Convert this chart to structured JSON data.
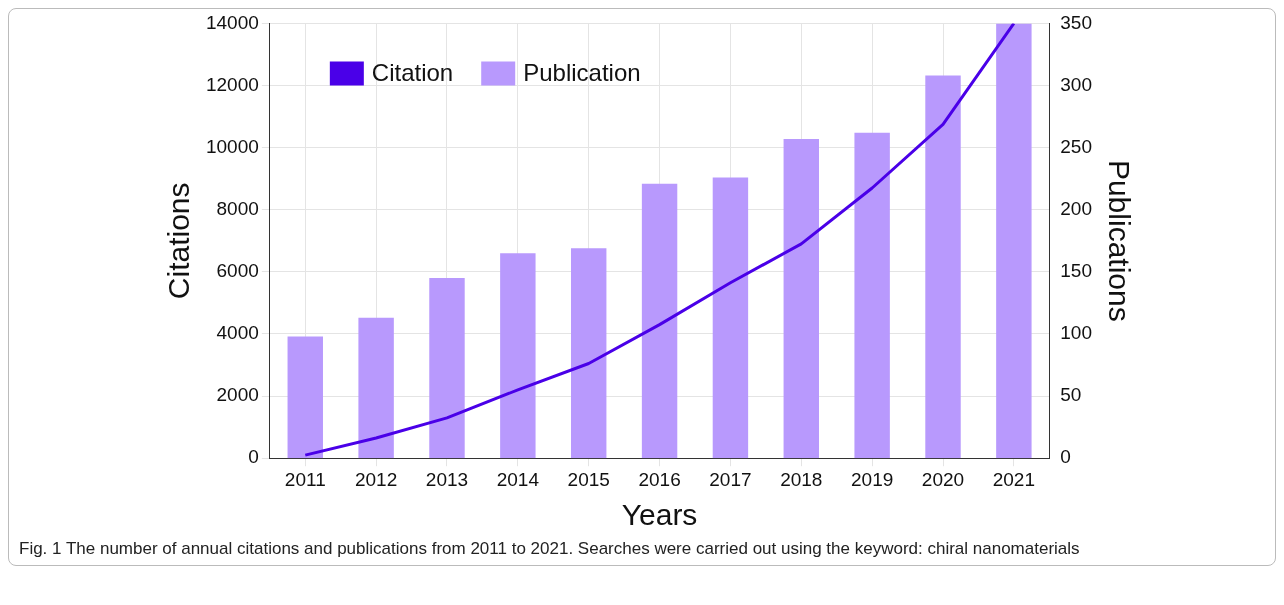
{
  "chart_data": {
    "type": "bar",
    "xlabel": "Years",
    "ylabel": "Citations",
    "y2label": "Publications",
    "categories": [
      "2011",
      "2012",
      "2013",
      "2014",
      "2015",
      "2016",
      "2017",
      "2018",
      "2019",
      "2020",
      "2021"
    ],
    "series": [
      {
        "name": "Citation",
        "type": "line",
        "axis": "y",
        "color": "#4a00e8",
        "values": [
          100,
          650,
          1300,
          2200,
          3050,
          4300,
          5650,
          6900,
          8700,
          10750,
          14000
        ]
      },
      {
        "name": "Publication",
        "axis": "y2",
        "color": "#b899fd",
        "values": [
          98,
          113,
          145,
          165,
          169,
          221,
          226,
          257,
          262,
          308,
          350
        ]
      }
    ],
    "ylim": [
      0,
      14000
    ],
    "yticks": [
      0,
      2000,
      4000,
      6000,
      8000,
      10000,
      12000,
      14000
    ],
    "y2lim": [
      0,
      350
    ],
    "y2ticks": [
      0,
      50,
      100,
      150,
      200,
      250,
      300,
      350
    ],
    "grid": true,
    "legend": "top left",
    "marker": "none",
    "annotations": [
      "Fig. 1  The number of annual citations and publications from 2011 to 2021. Searches were carried out using the keyword: chiral nanomaterials"
    ]
  }
}
